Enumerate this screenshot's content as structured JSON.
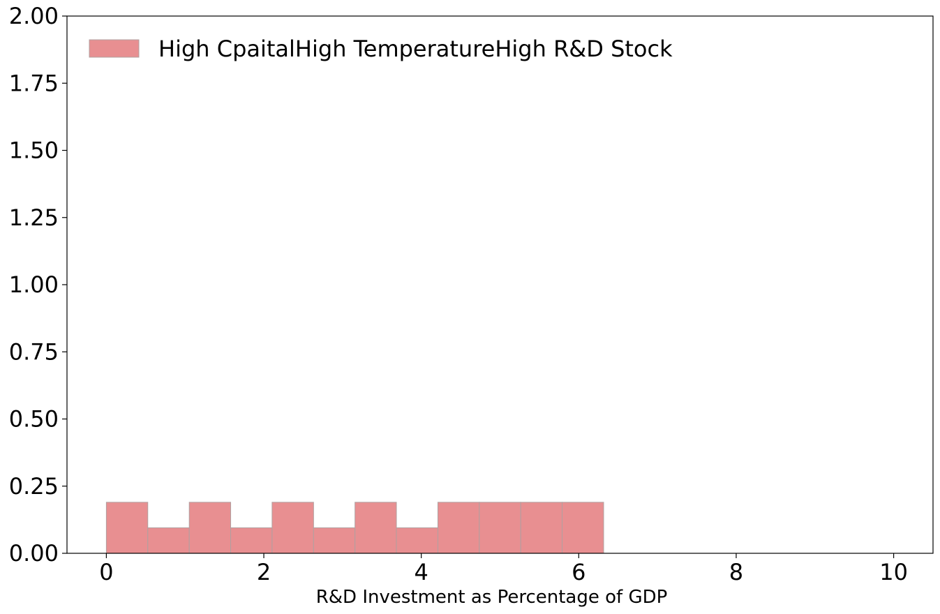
{
  "chart_data": {
    "type": "bar",
    "subtype": "histogram",
    "title": "",
    "xlabel": "R&D Investment as Percentage of GDP",
    "ylabel": "",
    "xlim": [
      -0.5,
      10.5
    ],
    "ylim": [
      0,
      2.0
    ],
    "x_ticks": [
      "0",
      "2",
      "4",
      "6",
      "8",
      "10"
    ],
    "y_ticks": [
      "0.00",
      "0.25",
      "0.50",
      "0.75",
      "1.00",
      "1.25",
      "1.50",
      "1.75",
      "2.00"
    ],
    "grid": false,
    "legend_position": "top-left",
    "series": [
      {
        "name": "High CpaitalHigh TemperatureHigh R&D Stock",
        "color": "#e88f91",
        "edge_color": "#b0a0a0",
        "bins": [
          {
            "x0": 0.0,
            "x1": 0.526,
            "value": 0.19
          },
          {
            "x0": 0.526,
            "x1": 1.053,
            "value": 0.095
          },
          {
            "x0": 1.053,
            "x1": 1.579,
            "value": 0.19
          },
          {
            "x0": 1.579,
            "x1": 2.105,
            "value": 0.095
          },
          {
            "x0": 2.105,
            "x1": 2.632,
            "value": 0.19
          },
          {
            "x0": 2.632,
            "x1": 3.158,
            "value": 0.095
          },
          {
            "x0": 3.158,
            "x1": 3.684,
            "value": 0.19
          },
          {
            "x0": 3.684,
            "x1": 4.211,
            "value": 0.095
          },
          {
            "x0": 4.211,
            "x1": 4.737,
            "value": 0.19
          },
          {
            "x0": 4.737,
            "x1": 5.263,
            "value": 0.19
          },
          {
            "x0": 5.263,
            "x1": 5.789,
            "value": 0.19
          },
          {
            "x0": 5.789,
            "x1": 6.316,
            "value": 0.19
          }
        ]
      }
    ]
  }
}
